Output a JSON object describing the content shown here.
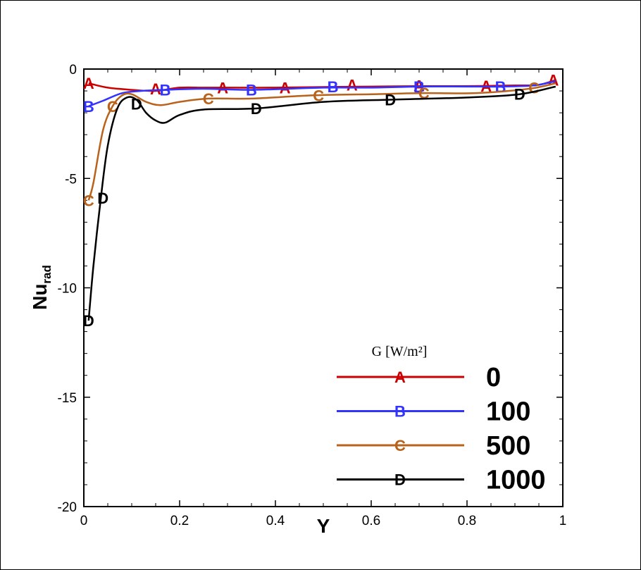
{
  "chart_data": {
    "type": "line",
    "xlabel": "Y",
    "ylabel_main": "Nu",
    "ylabel_sub": "rad",
    "xlim": [
      0,
      1
    ],
    "ylim": [
      -20,
      0
    ],
    "x_ticks": [
      0,
      0.2,
      0.4,
      0.6,
      0.8,
      1
    ],
    "x_tick_labels": [
      "0",
      "0.2",
      "0.4",
      "0.6",
      "0.8",
      "1"
    ],
    "y_ticks": [
      0,
      -5,
      -10,
      -15,
      -20
    ],
    "y_tick_labels": [
      "0",
      "-5",
      "-10",
      "-15",
      "-20"
    ],
    "grid": false,
    "legend": {
      "placement": "bottom-right",
      "title": "G [W/m²]"
    },
    "series": [
      {
        "name": "0",
        "marker": "A",
        "color": "#cc0000",
        "x": [
          0.01,
          0.05,
          0.1,
          0.15,
          0.2,
          0.25,
          0.3,
          0.4,
          0.5,
          0.6,
          0.7,
          0.8,
          0.9,
          0.95,
          0.985
        ],
        "y": [
          -0.65,
          -0.85,
          -0.95,
          -1.0,
          -0.85,
          -0.85,
          -0.85,
          -0.85,
          -0.82,
          -0.8,
          -0.78,
          -0.78,
          -0.75,
          -0.72,
          -0.5
        ],
        "markers_x": [
          0.01,
          0.15,
          0.29,
          0.42,
          0.56,
          0.7,
          0.84,
          0.98
        ],
        "markers_y": [
          -0.65,
          -0.9,
          -0.85,
          -0.85,
          -0.72,
          -0.75,
          -0.78,
          -0.5
        ]
      },
      {
        "name": "100",
        "marker": "B",
        "color": "#3333ff",
        "x": [
          0.01,
          0.04,
          0.08,
          0.12,
          0.17,
          0.25,
          0.35,
          0.5,
          0.6,
          0.7,
          0.8,
          0.87,
          0.94,
          0.985
        ],
        "y": [
          -1.7,
          -1.45,
          -1.1,
          -1.0,
          -0.95,
          -0.9,
          -0.95,
          -0.85,
          -0.85,
          -0.8,
          -0.8,
          -0.8,
          -0.75,
          -0.55
        ],
        "markers_x": [
          0.01,
          0.17,
          0.35,
          0.52,
          0.7,
          0.87
        ],
        "markers_y": [
          -1.7,
          -0.95,
          -0.95,
          -0.8,
          -0.8,
          -0.8
        ]
      },
      {
        "name": "500",
        "marker": "C",
        "color": "#b8621b",
        "x": [
          0.01,
          0.02,
          0.04,
          0.06,
          0.08,
          0.1,
          0.13,
          0.16,
          0.2,
          0.26,
          0.35,
          0.48,
          0.6,
          0.71,
          0.82,
          0.93,
          0.985
        ],
        "y": [
          -6.0,
          -5.2,
          -2.8,
          -1.7,
          -1.2,
          -1.15,
          -1.5,
          -1.65,
          -1.5,
          -1.35,
          -1.35,
          -1.2,
          -1.15,
          -1.1,
          -1.1,
          -0.9,
          -0.65
        ],
        "markers_x": [
          0.01,
          0.06,
          0.26,
          0.49,
          0.71,
          0.94
        ],
        "markers_y": [
          -6.0,
          -1.7,
          -1.35,
          -1.2,
          -1.1,
          -0.85
        ]
      },
      {
        "name": "1000",
        "marker": "D",
        "color": "#000000",
        "x": [
          0.01,
          0.02,
          0.035,
          0.05,
          0.07,
          0.09,
          0.11,
          0.13,
          0.15,
          0.17,
          0.2,
          0.25,
          0.36,
          0.5,
          0.64,
          0.8,
          0.91,
          0.985
        ],
        "y": [
          -11.5,
          -9.0,
          -6.0,
          -3.5,
          -1.8,
          -1.3,
          -1.4,
          -2.0,
          -2.35,
          -2.45,
          -2.1,
          -1.85,
          -1.8,
          -1.5,
          -1.4,
          -1.3,
          -1.15,
          -0.8
        ],
        "markers_x": [
          0.01,
          0.04,
          0.11,
          0.36,
          0.64,
          0.91
        ],
        "markers_y": [
          -11.5,
          -5.9,
          -1.6,
          -1.8,
          -1.4,
          -1.15
        ]
      }
    ]
  }
}
